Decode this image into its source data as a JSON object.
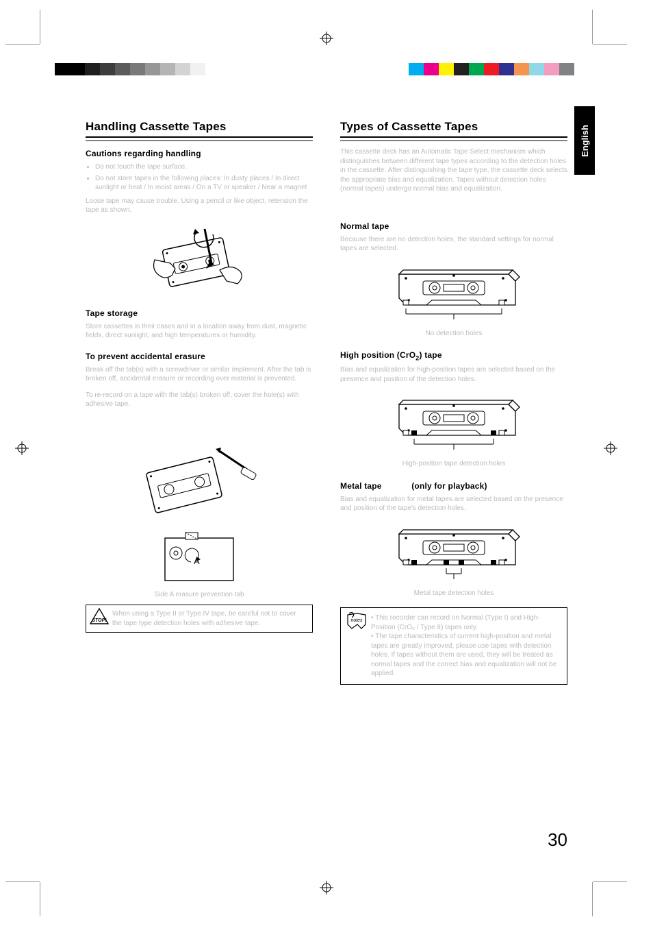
{
  "page_number": "30",
  "lang_tab": "English",
  "grayscale_swatches": [
    "#000000",
    "#000000",
    "#1f1f1f",
    "#3d3d3d",
    "#5b5b5b",
    "#797979",
    "#979797",
    "#b5b5b5",
    "#d3d3d3",
    "#f1f1f1"
  ],
  "color_swatches": [
    "#00adee",
    "#ec008b",
    "#fff200",
    "#242021",
    "#00a650",
    "#ed1b24",
    "#2f3192",
    "#f4944e",
    "#90d7e7",
    "#f49bc1",
    "#808284"
  ],
  "left": {
    "title": "Handling Cassette Tapes",
    "h1": "Cautions regarding handling",
    "p1_items": [
      "Do not touch the tape surface.",
      "Do not store tapes in the following places: In dusty places / In direct sunlight or heat / In moist areas / On a TV or speaker / Near a magnet"
    ],
    "p1b": "Loose tape may cause trouble. Using a pencil or like object, retension the tape as shown.",
    "h2": "Tape storage",
    "p2": "Store cassettes in their cases and in a location away from dust, magnetic fields, direct sunlight, and high temperatures or humidity.",
    "h3": "To prevent accidental erasure",
    "p3": "Break off the tab(s) with a screwdriver or similar implement. After the tab is broken off, accidental erasure or recording over material is prevented.",
    "p4": "To re-record on a tape with the tab(s) broken off, cover the hole(s) with adhesive tape.",
    "fig_tab_label": "Side A erasure prevention tab",
    "stop_text": "When using a Type II or Type IV tape, be careful not to cover the tape type detection holes with adhesive tape."
  },
  "right": {
    "title": "Types of Cassette Tapes",
    "intro": "This cassette deck has an Automatic Tape Select mechanism which distinguishes between different tape types according to the detection holes in the cassette. After distinguishing the tape type, the cassette deck selects the appropriate bias and equalization. Tapes without detection holes (normal tapes) undergo normal bias and equalization.",
    "normal_h": "Normal tape",
    "normal_p": "Because there are no detection holes, the standard settings for normal tapes are selected.",
    "normal_label": "No detection holes",
    "high_h_pre": "High position (CrO",
    "high_h_sub": "2",
    "high_h_post": ") tape",
    "high_p": "Bias and equalization for high-position tapes are selected based on the presence and position of the detection holes.",
    "high_label": "High-position tape detection holes",
    "metal_h": "Metal tape",
    "metal_h_note": "(only for playback)",
    "metal_p": "Bias and equalization for metal tapes are selected based on the presence and position of the tape's detection holes.",
    "metal_label": "Metal tape detection holes",
    "notes_text": "• This recorder can record on Normal (Type I) and High-Position (CrO₂ / Type II) tapes only.\n• The tape characteristics of current high-position and metal tapes are greatly improved; please use tapes with detection holes. If tapes without them are used, they will be treated as normal tapes and the correct bias and equalization will not be applied."
  },
  "icons": {
    "stop_stroke": "#000000",
    "notes_stroke": "#000000"
  },
  "cassette": {
    "body_fill": "#ffffff",
    "body_stroke": "#000000",
    "screw_fill": "#000000"
  }
}
